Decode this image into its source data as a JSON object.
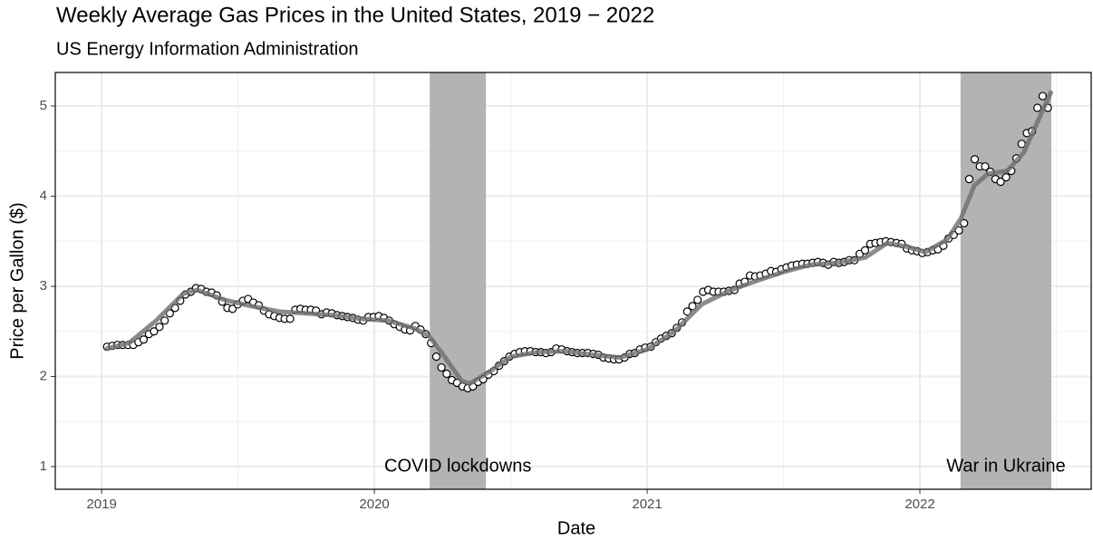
{
  "chart_data": {
    "type": "scatter",
    "title": "Weekly Average Gas Prices in the United States, 2019 − 2022",
    "subtitle": "US Energy Information Administration",
    "x_label": "Date",
    "y_label": "Price per Gallon ($)",
    "xlim": [
      2018.83,
      2022.628
    ],
    "ylim": [
      0.749,
      5.372
    ],
    "xticks": [
      2019,
      2020,
      2021,
      2022
    ],
    "yticks": [
      1,
      2,
      3,
      4,
      5
    ],
    "x_minor_ticks": [
      2019.5,
      2020.5,
      2021.5,
      2022.5
    ],
    "y_minor_ticks": [
      1.5,
      2.5,
      3.5,
      4.5
    ],
    "grid": true,
    "shaded_regions": [
      {
        "xlim": [
          2020.203,
          2020.409
        ],
        "label": "COVID lockdowns",
        "color": "#b3b3b3"
      },
      {
        "xlim": [
          2022.149,
          2022.482
        ],
        "label": "War in Ukraine",
        "color": "#b3b3b3"
      }
    ],
    "series": [
      {
        "marker": "point",
        "color": "#000000",
        "x": [
          2019.02,
          2019.039,
          2019.058,
          2019.077,
          2019.097,
          2019.116,
          2019.135,
          2019.154,
          2019.173,
          2019.192,
          2019.212,
          2019.231,
          2019.25,
          2019.269,
          2019.288,
          2019.307,
          2019.327,
          2019.346,
          2019.365,
          2019.384,
          2019.403,
          2019.422,
          2019.442,
          2019.461,
          2019.48,
          2019.499,
          2019.518,
          2019.537,
          2019.556,
          2019.576,
          2019.595,
          2019.614,
          2019.633,
          2019.652,
          2019.671,
          2019.691,
          2019.71,
          2019.729,
          2019.748,
          2019.767,
          2019.786,
          2019.806,
          2019.825,
          2019.844,
          2019.863,
          2019.882,
          2019.901,
          2019.921,
          2019.94,
          2019.959,
          2019.978,
          2019.997,
          2020.016,
          2020.035,
          2020.054,
          2020.073,
          2020.093,
          2020.112,
          2020.131,
          2020.15,
          2020.169,
          2020.188,
          2020.208,
          2020.227,
          2020.246,
          2020.265,
          2020.284,
          2020.303,
          2020.323,
          2020.342,
          2020.361,
          2020.38,
          2020.399,
          2020.418,
          2020.438,
          2020.457,
          2020.476,
          2020.495,
          2020.514,
          2020.533,
          2020.552,
          2020.572,
          2020.591,
          2020.61,
          2020.629,
          2020.648,
          2020.667,
          2020.687,
          2020.706,
          2020.725,
          2020.744,
          2020.763,
          2020.782,
          2020.802,
          2020.821,
          2020.84,
          2020.859,
          2020.878,
          2020.897,
          2020.917,
          2020.936,
          2020.955,
          2020.974,
          2020.993,
          2021.013,
          2021.032,
          2021.051,
          2021.07,
          2021.09,
          2021.109,
          2021.128,
          2021.147,
          2021.166,
          2021.185,
          2021.205,
          2021.224,
          2021.243,
          2021.262,
          2021.281,
          2021.3,
          2021.32,
          2021.339,
          2021.358,
          2021.377,
          2021.396,
          2021.415,
          2021.435,
          2021.454,
          2021.473,
          2021.492,
          2021.511,
          2021.53,
          2021.549,
          2021.569,
          2021.588,
          2021.607,
          2021.626,
          2021.645,
          2021.664,
          2021.684,
          2021.703,
          2021.722,
          2021.741,
          2021.76,
          2021.779,
          2021.799,
          2021.818,
          2021.837,
          2021.856,
          2021.875,
          2021.894,
          2021.914,
          2021.933,
          2021.952,
          2021.971,
          2021.99,
          2022.009,
          2022.028,
          2022.047,
          2022.066,
          2022.086,
          2022.105,
          2022.124,
          2022.143,
          2022.162,
          2022.181,
          2022.201,
          2022.22,
          2022.239,
          2022.258,
          2022.277,
          2022.296,
          2022.316,
          2022.335,
          2022.354,
          2022.373,
          2022.392,
          2022.411,
          2022.431,
          2022.45,
          2022.469
        ],
        "values": [
          2.33,
          2.34,
          2.35,
          2.35,
          2.35,
          2.35,
          2.38,
          2.41,
          2.47,
          2.5,
          2.55,
          2.62,
          2.7,
          2.76,
          2.84,
          2.91,
          2.94,
          2.98,
          2.97,
          2.94,
          2.93,
          2.9,
          2.83,
          2.76,
          2.75,
          2.8,
          2.84,
          2.86,
          2.82,
          2.79,
          2.73,
          2.69,
          2.67,
          2.65,
          2.64,
          2.64,
          2.74,
          2.75,
          2.74,
          2.74,
          2.73,
          2.69,
          2.71,
          2.7,
          2.68,
          2.67,
          2.66,
          2.65,
          2.63,
          2.62,
          2.66,
          2.66,
          2.67,
          2.65,
          2.62,
          2.58,
          2.55,
          2.52,
          2.51,
          2.56,
          2.52,
          2.47,
          2.37,
          2.22,
          2.1,
          2.03,
          1.96,
          1.93,
          1.89,
          1.87,
          1.89,
          1.94,
          1.97,
          2.02,
          2.06,
          2.12,
          2.17,
          2.22,
          2.25,
          2.27,
          2.28,
          2.28,
          2.27,
          2.27,
          2.26,
          2.27,
          2.31,
          2.3,
          2.28,
          2.27,
          2.26,
          2.26,
          2.26,
          2.25,
          2.24,
          2.21,
          2.2,
          2.19,
          2.19,
          2.21,
          2.25,
          2.26,
          2.3,
          2.32,
          2.33,
          2.38,
          2.42,
          2.45,
          2.48,
          2.54,
          2.6,
          2.72,
          2.78,
          2.85,
          2.94,
          2.96,
          2.94,
          2.94,
          2.94,
          2.95,
          2.96,
          3.03,
          3.05,
          3.12,
          3.11,
          3.12,
          3.14,
          3.17,
          3.16,
          3.19,
          3.21,
          3.23,
          3.24,
          3.25,
          3.25,
          3.26,
          3.27,
          3.26,
          3.24,
          3.27,
          3.26,
          3.27,
          3.29,
          3.29,
          3.36,
          3.4,
          3.47,
          3.48,
          3.49,
          3.5,
          3.49,
          3.48,
          3.47,
          3.42,
          3.4,
          3.39,
          3.37,
          3.38,
          3.4,
          3.41,
          3.45,
          3.53,
          3.57,
          3.62,
          3.7,
          4.19,
          4.41,
          4.33,
          4.33,
          4.27,
          4.19,
          4.16,
          4.21,
          4.28,
          4.42,
          4.58,
          4.7,
          4.72,
          4.98,
          5.11,
          4.98
        ]
      },
      {
        "marker": "line",
        "color": "#6e6e6e",
        "x": [
          2019.02,
          2019.1,
          2019.2,
          2019.3,
          2019.35,
          2019.45,
          2019.55,
          2019.65,
          2019.75,
          2019.85,
          2019.95,
          2020.05,
          2020.15,
          2020.2,
          2020.25,
          2020.32,
          2020.35,
          2020.42,
          2020.5,
          2020.6,
          2020.7,
          2020.8,
          2020.9,
          2021.0,
          2021.1,
          2021.2,
          2021.3,
          2021.4,
          2021.5,
          2021.6,
          2021.7,
          2021.8,
          2021.88,
          2021.95,
          2022.02,
          2022.1,
          2022.15,
          2022.2,
          2022.25,
          2022.32,
          2022.38,
          2022.45,
          2022.48
        ],
        "values": [
          2.31,
          2.37,
          2.62,
          2.92,
          2.96,
          2.85,
          2.78,
          2.72,
          2.7,
          2.68,
          2.64,
          2.62,
          2.53,
          2.45,
          2.25,
          1.95,
          1.92,
          2.05,
          2.22,
          2.27,
          2.28,
          2.24,
          2.21,
          2.3,
          2.5,
          2.8,
          2.95,
          3.06,
          3.16,
          3.24,
          3.26,
          3.32,
          3.48,
          3.44,
          3.38,
          3.52,
          3.75,
          4.12,
          4.25,
          4.28,
          4.48,
          4.95,
          5.15
        ]
      }
    ]
  }
}
